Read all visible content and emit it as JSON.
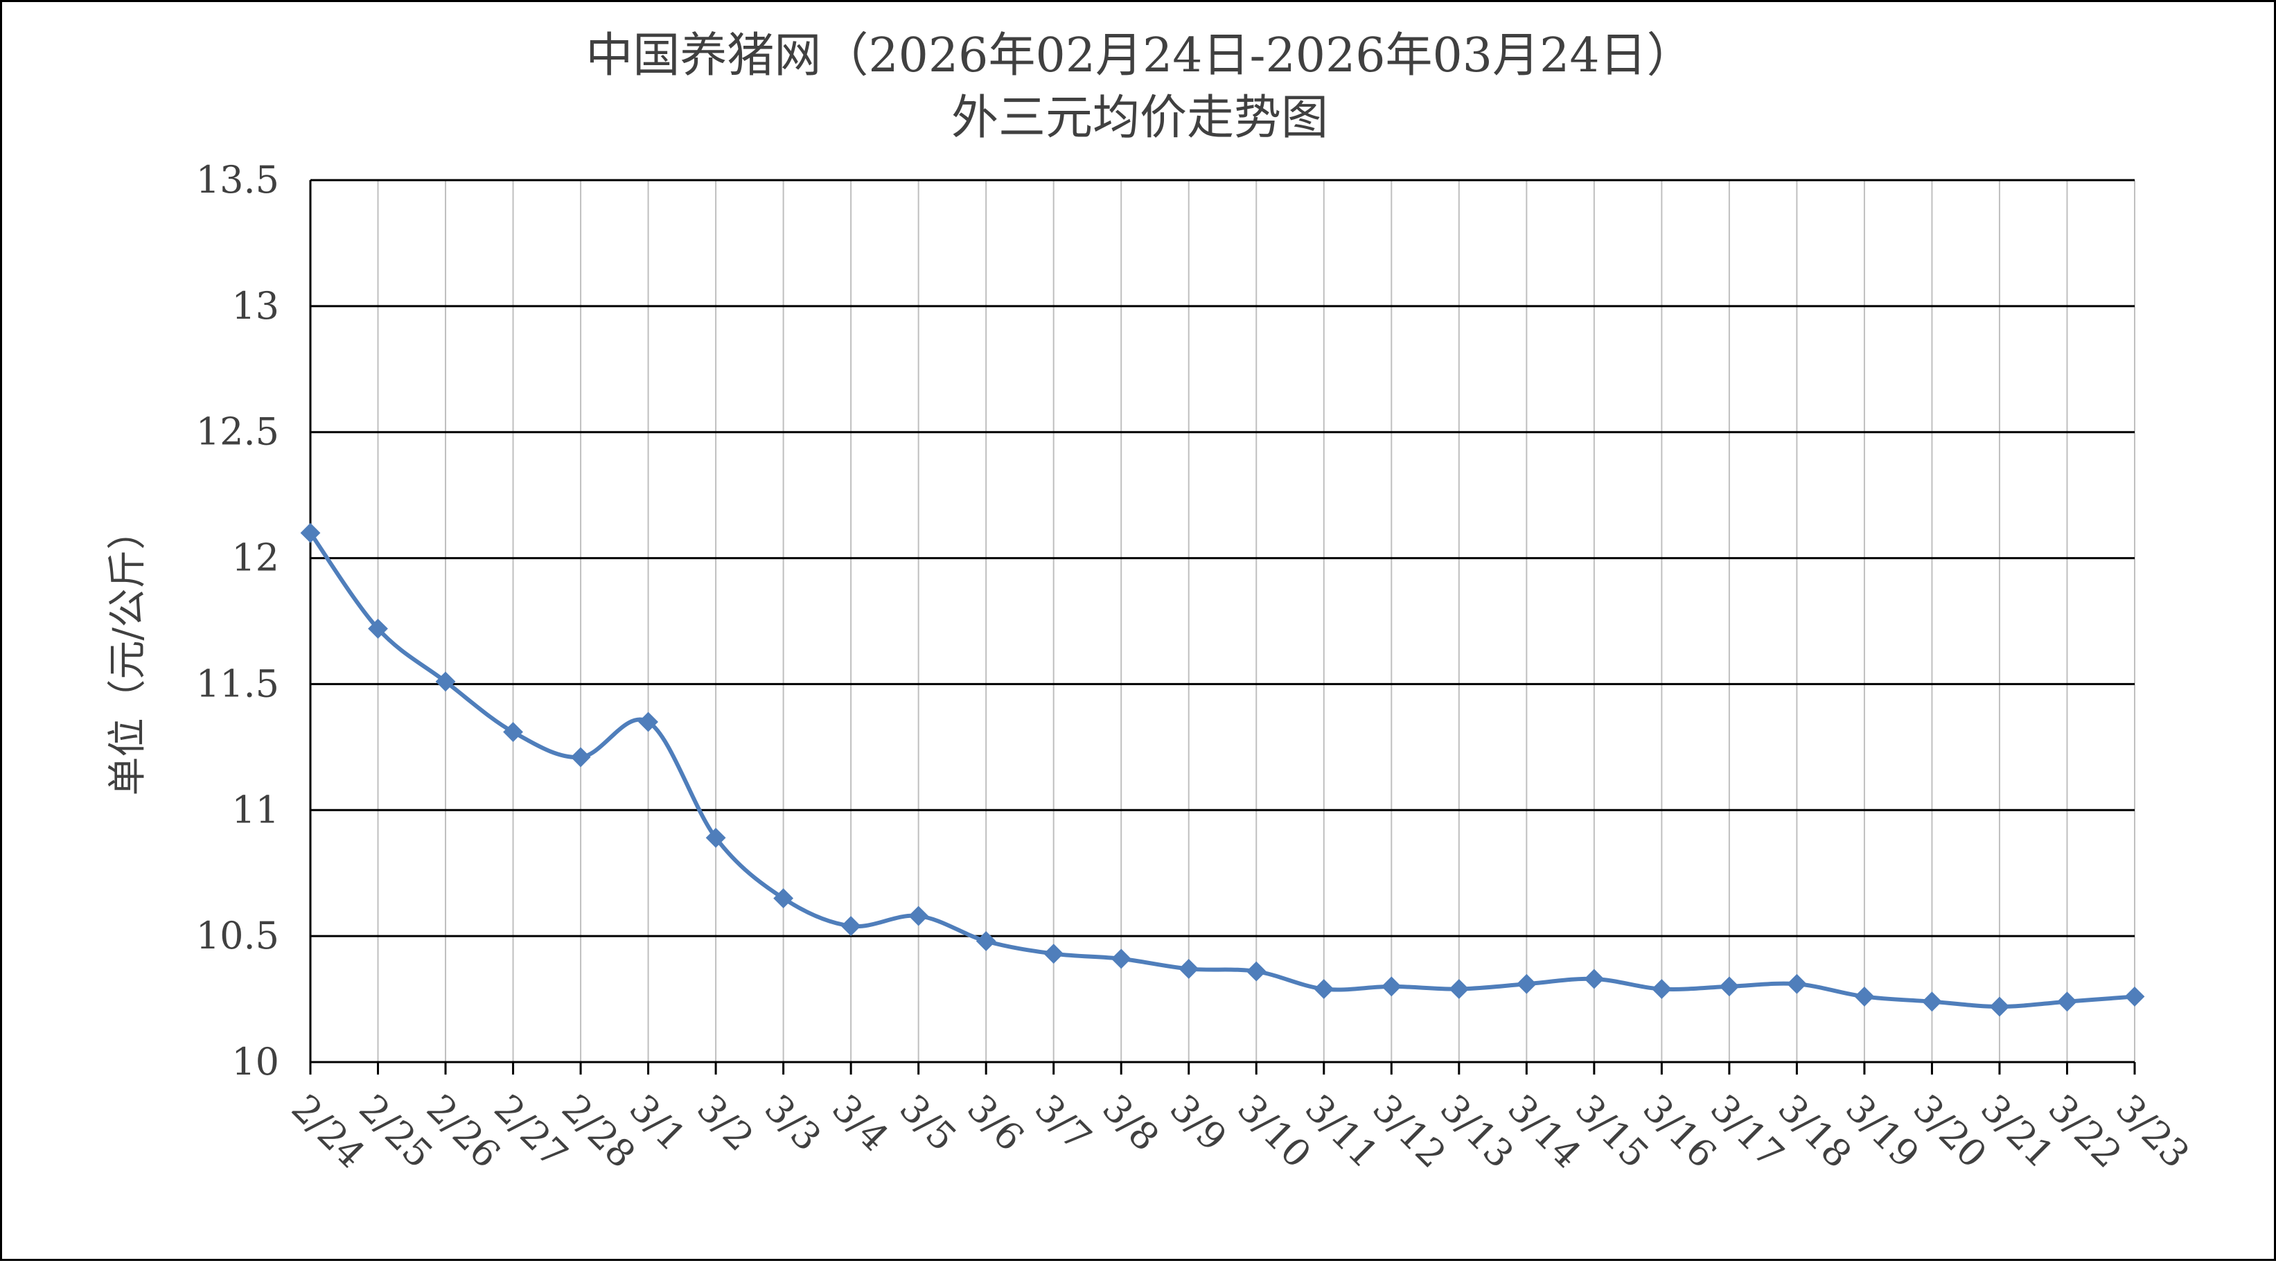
{
  "chart_data": {
    "type": "line",
    "title": "中国养猪网（2026年02月24日-2026年03月24日）",
    "subtitle": "外三元均价走势图",
    "xlabel": "",
    "ylabel": "单位（元/公斤）",
    "ylim": [
      10,
      13.5
    ],
    "yticks": [
      10,
      10.5,
      11,
      11.5,
      12,
      12.5,
      13,
      13.5
    ],
    "ytick_labels": [
      "10",
      "10.5",
      "11",
      "11.5",
      "12",
      "12.5",
      "13",
      "13.5"
    ],
    "grid": true,
    "legend": "none",
    "line_color": "#4F7EBB",
    "categories": [
      "2/24",
      "2/25",
      "2/26",
      "2/27",
      "2/28",
      "3/1",
      "3/2",
      "3/3",
      "3/4",
      "3/5",
      "3/6",
      "3/7",
      "3/8",
      "3/9",
      "3/10",
      "3/11",
      "3/12",
      "3/13",
      "3/14",
      "3/15",
      "3/16",
      "3/17",
      "3/18",
      "3/19",
      "3/20",
      "3/21",
      "3/22",
      "3/23"
    ],
    "values": [
      12.1,
      11.72,
      11.51,
      11.31,
      11.21,
      11.35,
      10.89,
      10.65,
      10.54,
      10.58,
      10.48,
      10.43,
      10.41,
      10.37,
      10.36,
      10.29,
      10.3,
      10.29,
      10.31,
      10.33,
      10.29,
      10.3,
      10.31,
      10.26,
      10.24,
      10.22,
      10.24,
      10.26
    ]
  }
}
